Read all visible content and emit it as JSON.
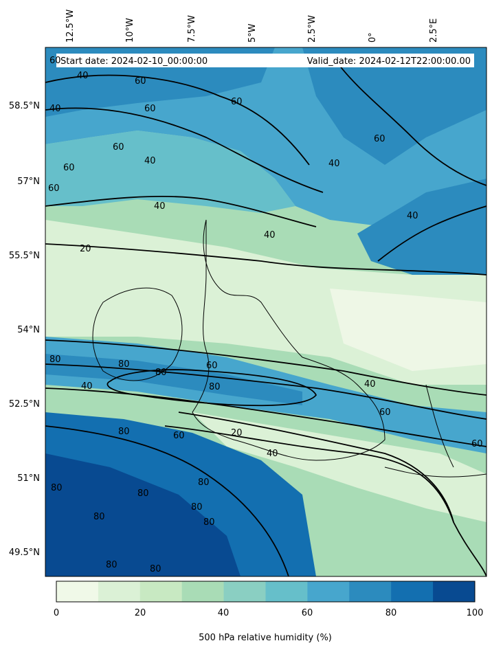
{
  "header": {
    "start_date": "Start date: 2024-02-10_00:00:00",
    "valid_date": "Valid_date: 2024-02-12T22:00:00.00"
  },
  "longitude_labels": [
    "12.5°W",
    "10°W",
    "7.5°W",
    "5°W",
    "2.5°W",
    "0°",
    "2.5°E"
  ],
  "latitude_labels": [
    "58.5°N",
    "57°N",
    "55.5°N",
    "54°N",
    "52.5°N",
    "51°N",
    "49.5°N"
  ],
  "contour_labels": [
    "60",
    "40",
    "60",
    "60",
    "40",
    "60",
    "60",
    "60",
    "40",
    "60",
    "40",
    "20",
    "40",
    "80",
    "40",
    "80",
    "80",
    "60",
    "40",
    "80",
    "60",
    "40",
    "20",
    "80",
    "60",
    "80",
    "80",
    "80",
    "80",
    "80",
    "80",
    "80",
    "80",
    "40",
    "60",
    "60",
    "40"
  ],
  "colorbar": {
    "title": "500 hPa relative humidity (%)",
    "ticks": [
      "0",
      "20",
      "40",
      "60",
      "80",
      "100"
    ],
    "colors": [
      "#f0f9e8",
      "#dbf1d6",
      "#c8e9c2",
      "#a9dcb6",
      "#8acfc2",
      "#66bfca",
      "#47a6cd",
      "#2c8bbe",
      "#136fb0",
      "#084a91"
    ]
  },
  "chart_data": {
    "type": "heatmap",
    "variable": "500 hPa relative humidity",
    "unit": "%",
    "colorbar_range": [
      0,
      100
    ],
    "colorbar_levels": [
      0,
      10,
      20,
      30,
      40,
      50,
      60,
      70,
      80,
      90,
      100
    ],
    "contour_levels": [
      20,
      40,
      60,
      80
    ]
  }
}
